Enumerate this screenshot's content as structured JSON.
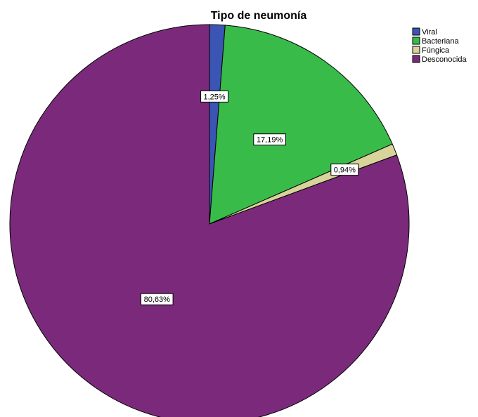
{
  "chart_data": {
    "type": "pie",
    "title": "Tipo de neumonía",
    "categories": [
      "Viral",
      "Bacteriana",
      "Fúngica",
      "Desconocida"
    ],
    "values": [
      1.25,
      17.19,
      0.94,
      80.63
    ],
    "data_labels": [
      "1,25%",
      "17,19%",
      "0,94%",
      "80,63%"
    ],
    "colors": [
      "#3b55b4",
      "#39bb4a",
      "#d7d39a",
      "#7b2a7b"
    ],
    "start_angle": "12 o'clock",
    "direction": "clockwise",
    "legend_position": "top-right"
  }
}
